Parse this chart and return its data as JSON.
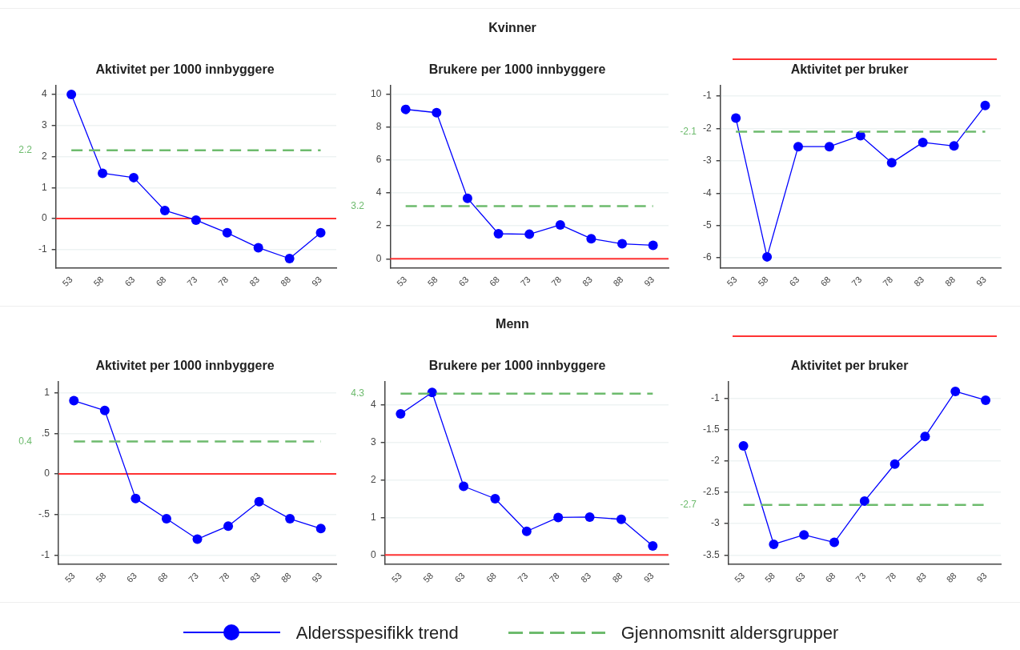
{
  "chart_data": [
    {
      "type": "line",
      "title": "Aktivitet per 1000 innbyggere",
      "categories": [
        "53",
        "58",
        "63",
        "68",
        "73",
        "78",
        "83",
        "88",
        "93"
      ],
      "ylim": [
        -1.6,
        4.28
      ],
      "yticks": [
        -1,
        0,
        1,
        2,
        3,
        4
      ],
      "grid": "y",
      "series": [
        {
          "color": "#0000ff",
          "marker": "circle",
          "values": [
            4.0,
            1.46,
            1.32,
            0.26,
            -0.05,
            -0.46,
            -0.94,
            -1.29,
            -0.46
          ]
        },
        {
          "type": "line",
          "color": "#6dbb6d",
          "marker": "none",
          "line_style": "dashed",
          "values": [
            2.2,
            2.2,
            2.2,
            2.2,
            2.2,
            2.2,
            2.2,
            2.2,
            2.2
          ]
        }
      ],
      "ref_lines": [
        {
          "axis": "y",
          "value": 0,
          "color": "#ff3333"
        }
      ],
      "annotations": [
        "2.2"
      ]
    },
    {
      "type": "line",
      "subtitle": "Kvinner",
      "title": "Brukere per 1000 innbyggere",
      "categories": [
        "53",
        "58",
        "63",
        "68",
        "73",
        "78",
        "83",
        "88",
        "93"
      ],
      "ylim": [
        -0.57,
        10.5
      ],
      "yticks": [
        0,
        2,
        4,
        6,
        8,
        10
      ],
      "grid": "y",
      "series": [
        {
          "color": "#0000ff",
          "marker": "circle",
          "values": [
            9.07,
            8.87,
            3.67,
            1.52,
            1.49,
            2.06,
            1.22,
            0.91,
            0.82
          ]
        },
        {
          "type": "line",
          "color": "#6dbb6d",
          "marker": "none",
          "line_style": "dashed",
          "values": [
            3.2,
            3.2,
            3.2,
            3.2,
            3.2,
            3.2,
            3.2,
            3.2,
            3.2
          ]
        }
      ],
      "ref_lines": [
        {
          "axis": "y",
          "value": 0,
          "color": "#ff3333"
        }
      ],
      "annotations": [
        "3.2"
      ]
    },
    {
      "type": "line",
      "title": "Aktivitet per bruker",
      "categories": [
        "53",
        "58",
        "63",
        "68",
        "73",
        "78",
        "83",
        "88",
        "93"
      ],
      "ylim": [
        -6.32,
        -0.68
      ],
      "yticks": [
        -6,
        -5,
        -4,
        -3,
        -2,
        -1
      ],
      "grid": "y",
      "series": [
        {
          "color": "#0000ff",
          "marker": "circle",
          "values": [
            -1.68,
            -5.97,
            -2.56,
            -2.56,
            -2.22,
            -3.06,
            -2.43,
            -2.54,
            -1.29
          ]
        },
        {
          "type": "line",
          "color": "#6dbb6d",
          "marker": "none",
          "line_style": "dashed",
          "values": [
            -2.1,
            -2.1,
            -2.1,
            -2.1,
            -2.1,
            -2.1,
            -2.1,
            -2.1,
            -2.1
          ]
        }
      ],
      "annotations": [
        "-2.1"
      ]
    },
    {
      "type": "line",
      "title": "Aktivitet per 1000 innbyggere",
      "categories": [
        "53",
        "58",
        "63",
        "68",
        "73",
        "78",
        "83",
        "88",
        "93"
      ],
      "ylim": [
        -1.11,
        1.13
      ],
      "yticks": [
        -1,
        {
          "value": -0.5,
          "label": "-.5"
        },
        0,
        {
          "value": 0.5,
          "label": ".5"
        },
        1
      ],
      "grid": "y",
      "series": [
        {
          "color": "#0000ff",
          "marker": "circle",
          "values": [
            0.9,
            0.78,
            -0.3,
            -0.55,
            -0.8,
            -0.64,
            -0.34,
            -0.55,
            -0.67
          ]
        },
        {
          "type": "line",
          "color": "#6dbb6d",
          "marker": "none",
          "line_style": "dashed",
          "values": [
            0.4,
            0.4,
            0.4,
            0.4,
            0.4,
            0.4,
            0.4,
            0.4,
            0.4
          ]
        }
      ],
      "ref_lines": [
        {
          "axis": "y",
          "value": 0,
          "color": "#ff3333"
        }
      ],
      "annotations": [
        "0.4"
      ]
    },
    {
      "type": "line",
      "subtitle": "Menn",
      "title": "Brukere per 1000 innbyggere",
      "categories": [
        "53",
        "58",
        "63",
        "68",
        "73",
        "78",
        "83",
        "88",
        "93"
      ],
      "ylim": [
        -0.25,
        4.61
      ],
      "yticks": [
        0,
        1,
        2,
        3,
        4
      ],
      "grid": "y",
      "series": [
        {
          "color": "#0000ff",
          "marker": "circle",
          "values": [
            3.76,
            4.33,
            1.83,
            1.5,
            0.63,
            1.0,
            1.01,
            0.95,
            0.24
          ]
        },
        {
          "type": "line",
          "color": "#6dbb6d",
          "marker": "none",
          "line_style": "dashed",
          "values": [
            4.3,
            4.3,
            4.3,
            4.3,
            4.3,
            4.3,
            4.3,
            4.3,
            4.3
          ]
        }
      ],
      "ref_lines": [
        {
          "axis": "y",
          "value": 0,
          "color": "#ff3333"
        }
      ],
      "annotations": [
        "4.3"
      ]
    },
    {
      "type": "line",
      "title": "Aktivitet per bruker",
      "categories": [
        "53",
        "58",
        "63",
        "68",
        "73",
        "78",
        "83",
        "88",
        "93"
      ],
      "ylim": [
        -3.65,
        -0.74
      ],
      "yticks": [
        {
          "value": -3.5,
          "label": "-3.5"
        },
        -3,
        {
          "value": -2.5,
          "label": "-2.5"
        },
        -2,
        {
          "value": -1.5,
          "label": "-1.5"
        },
        -1
      ],
      "grid": "y",
      "legend": "bottom",
      "series": [
        {
          "name": "Aldersspesifikk trend",
          "color": "#0000ff",
          "marker": "circle",
          "values": [
            -1.76,
            -3.33,
            -3.18,
            -3.3,
            -2.64,
            -2.05,
            -1.61,
            -0.89,
            -1.03
          ]
        },
        {
          "name": "Gjennomsnitt aldersgrupper",
          "type": "line",
          "color": "#6dbb6d",
          "marker": "none",
          "line_style": "dashed",
          "values": [
            -2.7,
            -2.7,
            -2.7,
            -2.7,
            -2.7,
            -2.7,
            -2.7,
            -2.7,
            -2.7
          ]
        }
      ],
      "annotations": [
        "-2.7"
      ]
    }
  ]
}
